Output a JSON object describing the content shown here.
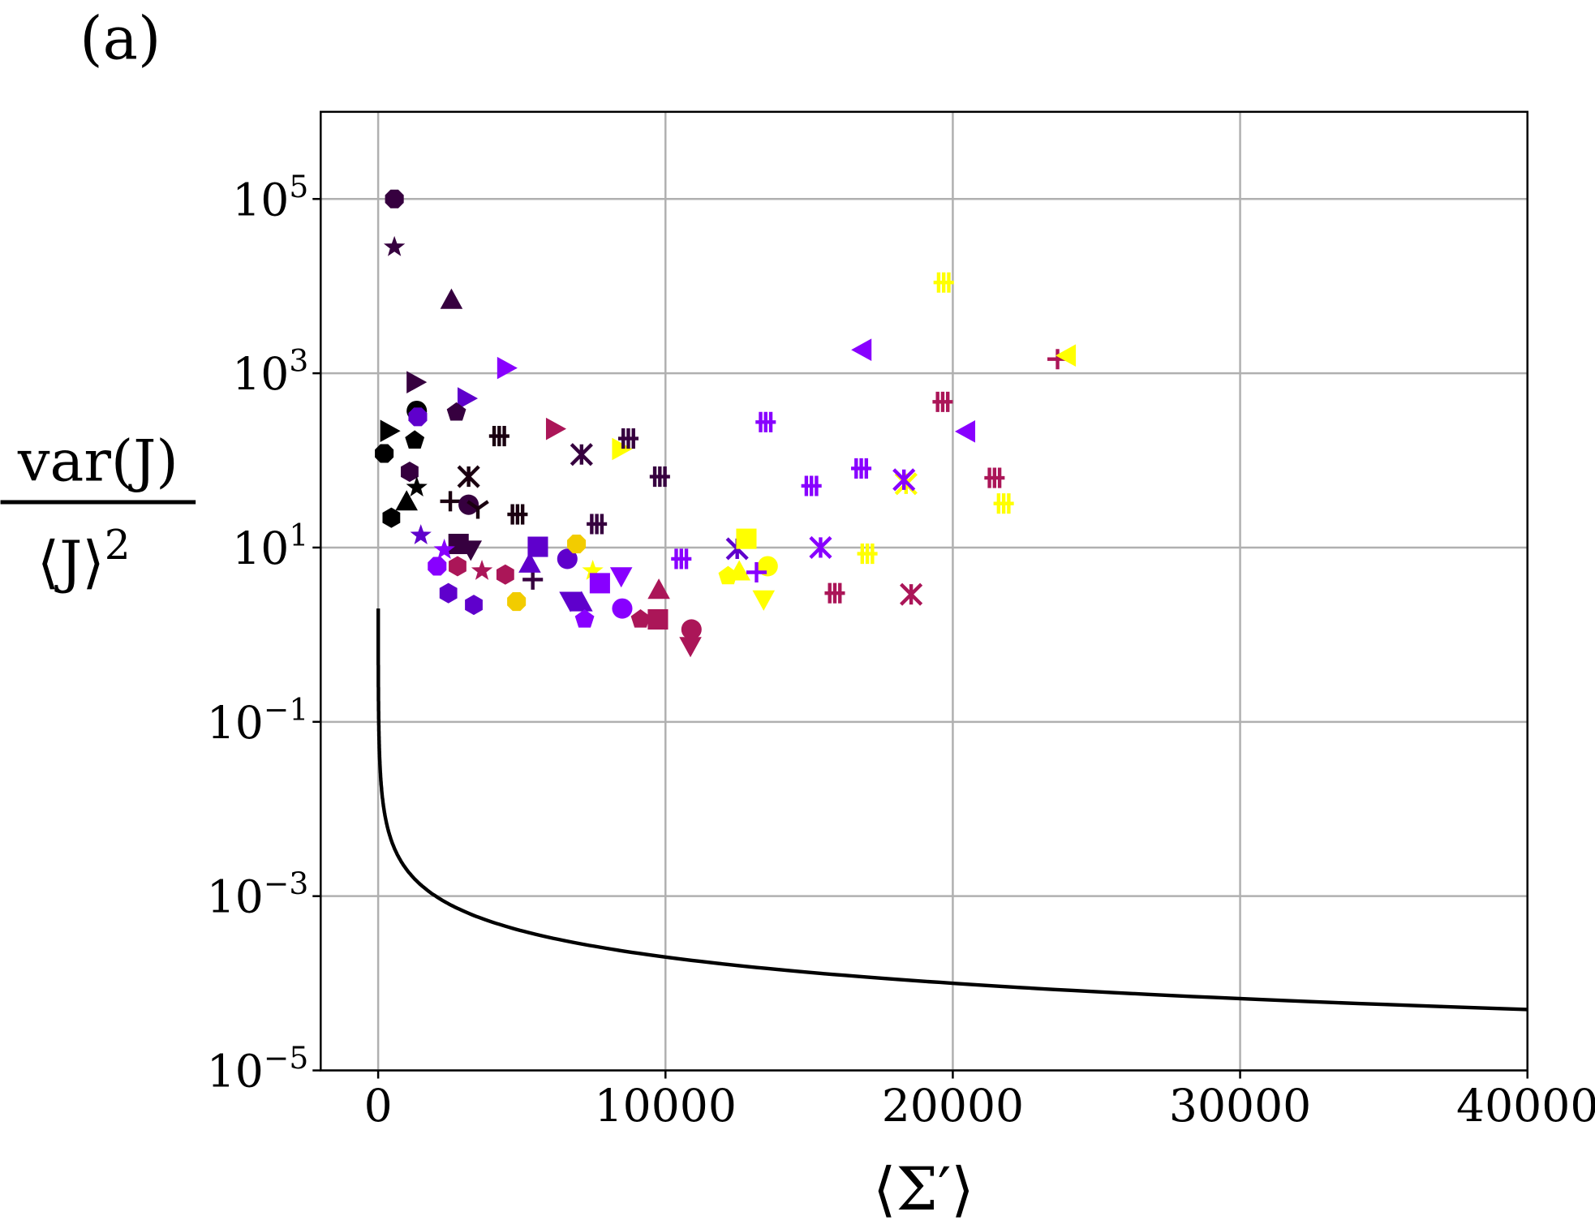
{
  "chart_data": {
    "type": "scatter",
    "panel_label": "(a)",
    "xlabel": "⟨Σ′⟩",
    "ylabel_numerator": "var(J)",
    "ylabel_denominator": "⟨J⟩",
    "ylabel_denominator_exp": "2",
    "xscale": "linear",
    "yscale": "log",
    "xlim": [
      -2000,
      40000
    ],
    "ylim": [
      1e-05,
      1000000.0
    ],
    "grid": true,
    "x_ticks": [
      0,
      10000,
      20000,
      30000,
      40000
    ],
    "x_tick_labels": [
      "0",
      "10000",
      "20000",
      "30000",
      "40000"
    ],
    "y_ticks": [
      1e-05,
      0.001,
      0.1,
      10.0,
      1000.0,
      100000.0
    ],
    "y_tick_labels": [
      {
        "base": "10",
        "exp": "−5"
      },
      {
        "base": "10",
        "exp": "−3"
      },
      {
        "base": "10",
        "exp": "−1"
      },
      {
        "base": "10",
        "exp": "1"
      },
      {
        "base": "10",
        "exp": "3"
      },
      {
        "base": "10",
        "exp": "5"
      }
    ],
    "colors": {
      "k": "#000000",
      "b": "#1a0010",
      "d": "#36003f",
      "p": "#5f00cc",
      "v": "#8800ff",
      "m": "#ab1658",
      "g": "#f2cc00",
      "y": "#ffff00"
    },
    "line": {
      "formula": "y = 2/x",
      "coefficient": 2,
      "x_range": [
        1,
        40000
      ],
      "color": "#000000"
    },
    "points": [
      [
        566,
        100000.0,
        "octagon",
        "d"
      ],
      [
        566,
        28000.0,
        "star",
        "d"
      ],
      [
        2550,
        6800.0,
        "triangle",
        "d"
      ],
      [
        4425,
        1150,
        "right",
        "v"
      ],
      [
        1274,
        790,
        "right",
        "d"
      ],
      [
        3044,
        515,
        "right",
        "p"
      ],
      [
        1345,
        370,
        "circle",
        "k"
      ],
      [
        1380,
        316,
        "octagon",
        "p"
      ],
      [
        2725,
        355,
        "pentagon",
        "d"
      ],
      [
        354,
        218,
        "right",
        "k"
      ],
      [
        1274,
        170,
        "pentagon",
        "k"
      ],
      [
        212,
        120,
        "octagon",
        "k"
      ],
      [
        4213,
        190,
        "glyph",
        "b"
      ],
      [
        6124,
        230,
        "right",
        "m"
      ],
      [
        7080,
        117,
        "x",
        "d"
      ],
      [
        8425,
        135,
        "right",
        "y"
      ],
      [
        8708,
        178,
        "glyph",
        "d"
      ],
      [
        9805,
        65,
        "glyph",
        "d"
      ],
      [
        1097,
        74,
        "hexagon",
        "d"
      ],
      [
        3150,
        65,
        "x",
        "b"
      ],
      [
        1345,
        49,
        "star",
        "k"
      ],
      [
        991,
        33,
        "triangle",
        "k"
      ],
      [
        2513,
        34,
        "plus",
        "b"
      ],
      [
        3150,
        31,
        "circle",
        "d"
      ],
      [
        3469,
        28,
        "tri",
        "b"
      ],
      [
        4850,
        24,
        "glyph",
        "b"
      ],
      [
        460,
        22,
        "hexagon",
        "k"
      ],
      [
        7611,
        18.6,
        "glyph",
        "d"
      ],
      [
        1487,
        13.8,
        "star",
        "p"
      ],
      [
        2797,
        11,
        "square",
        "d"
      ],
      [
        3221,
        9.7,
        "down",
        "d"
      ],
      [
        2301,
        9.4,
        "star",
        "v"
      ],
      [
        2053,
        6.1,
        "octagon",
        "v"
      ],
      [
        2761,
        6.1,
        "hexagon",
        "m"
      ],
      [
        3611,
        5.4,
        "star",
        "m"
      ],
      [
        4425,
        4.9,
        "hexagon",
        "m"
      ],
      [
        5380,
        4.3,
        "plus",
        "d"
      ],
      [
        5558,
        10.2,
        "square",
        "p"
      ],
      [
        5275,
        6.4,
        "triangle",
        "p"
      ],
      [
        6584,
        7.4,
        "circle",
        "p"
      ],
      [
        6903,
        11,
        "octagon",
        "g"
      ],
      [
        7469,
        5.4,
        "star",
        "y"
      ],
      [
        8460,
        4.8,
        "down",
        "v"
      ],
      [
        7717,
        3.9,
        "square",
        "v"
      ],
      [
        2443,
        3.0,
        "hexagon",
        "p"
      ],
      [
        3328,
        2.2,
        "hexagon",
        "p"
      ],
      [
        4814,
        2.4,
        "octagon",
        "g"
      ],
      [
        6690,
        2.5,
        "down",
        "p"
      ],
      [
        7080,
        2.3,
        "triangle",
        "p"
      ],
      [
        7186,
        1.5,
        "pentagon",
        "v"
      ],
      [
        8496,
        2.0,
        "circle",
        "v"
      ],
      [
        9770,
        3.2,
        "triangle",
        "m"
      ],
      [
        9133,
        1.5,
        "pentagon",
        "m"
      ],
      [
        9735,
        1.5,
        "square",
        "m"
      ],
      [
        10903,
        1.15,
        "circle",
        "m"
      ],
      [
        10868,
        0.76,
        "down",
        "m"
      ],
      [
        10549,
        7.4,
        "glyph",
        "v"
      ],
      [
        12496,
        9.7,
        "x",
        "p"
      ],
      [
        12814,
        12.6,
        "square",
        "y"
      ],
      [
        12178,
        4.7,
        "pentagon",
        "y"
      ],
      [
        12567,
        5.2,
        "triangle",
        "y"
      ],
      [
        13558,
        6.1,
        "circle",
        "y"
      ],
      [
        13169,
        5.2,
        "plus",
        "v"
      ],
      [
        13417,
        2.6,
        "down",
        "y"
      ],
      [
        13488,
        275,
        "glyph",
        "v"
      ],
      [
        16886,
        1860,
        "left",
        "v"
      ],
      [
        15080,
        51,
        "glyph",
        "v"
      ],
      [
        16815,
        81,
        "glyph",
        "v"
      ],
      [
        15399,
        10,
        "x",
        "v"
      ],
      [
        17027,
        8.5,
        "glyph",
        "y"
      ],
      [
        15895,
        3.0,
        "glyph",
        "m"
      ],
      [
        18373,
        54,
        "x",
        "y"
      ],
      [
        18300,
        60,
        "x",
        "v"
      ],
      [
        18550,
        2.9,
        "x",
        "m"
      ],
      [
        19682,
        11000.0,
        "glyph",
        "y"
      ],
      [
        19647,
        470,
        "glyph",
        "m"
      ],
      [
        20497,
        215,
        "left",
        "v"
      ],
      [
        21452,
        63,
        "glyph",
        "m"
      ],
      [
        21771,
        32,
        "glyph",
        "y"
      ],
      [
        23647,
        1450,
        "plus",
        "m"
      ],
      [
        24001,
        1600,
        "left",
        "y"
      ]
    ]
  }
}
